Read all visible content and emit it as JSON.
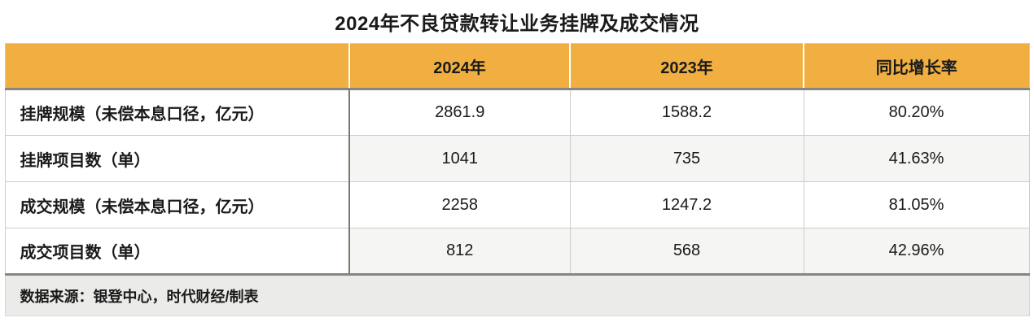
{
  "chart_data": {
    "type": "table",
    "title": "2024年不良贷款转让业务挂牌及成交情况",
    "columns": [
      "",
      "2024年",
      "2023年",
      "同比增长率"
    ],
    "rows": [
      [
        "挂牌规模（未偿本息口径，亿元）",
        "2861.9",
        "1588.2",
        "80.20%"
      ],
      [
        "挂牌项目数（单）",
        "1041",
        "735",
        "41.63%"
      ],
      [
        "成交规模（未偿本息口径，亿元）",
        "2258",
        "1247.2",
        "81.05%"
      ],
      [
        "成交项目数（单）",
        "812",
        "568",
        "42.96%"
      ]
    ],
    "source_note": "数据来源：银登中心，时代财经/制表",
    "layout": {
      "header_position": "top",
      "row_striping": "alternate white / light-gray on value columns",
      "grid": "on"
    }
  },
  "colors": {
    "header_bg": "#F0AF40",
    "stripe_bg": "#F5F5F3",
    "footer_bg": "#EBEBE9",
    "dark_border": "#8A857E",
    "dark_column_divider": "#7B766F",
    "light_border": "#CDCDCD",
    "text": "#1A1A1A"
  }
}
